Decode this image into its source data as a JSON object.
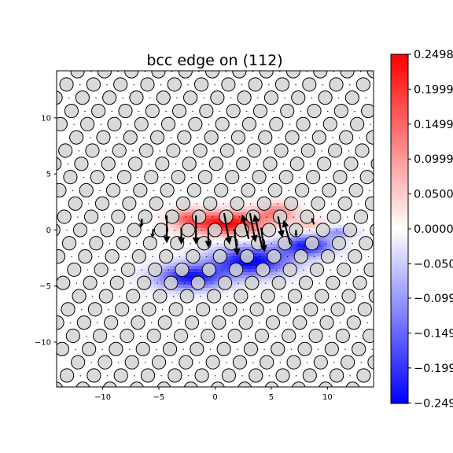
{
  "chart_data": {
    "type": "heatmap",
    "title": "bcc edge on (112)",
    "xlabel": "",
    "ylabel": "",
    "xlim": [
      -14.1,
      14.1
    ],
    "ylim": [
      -14.0,
      14.2
    ],
    "xticks": [
      -10,
      -5,
      0,
      5,
      10
    ],
    "yticks": [
      -10,
      -5,
      0,
      5,
      10
    ],
    "xtick_labels": [
      "−10",
      "−5",
      "0",
      "5",
      "10"
    ],
    "ytick_labels": [
      "−10",
      "−5",
      "0",
      "5",
      "10"
    ],
    "colormap": "bwr",
    "colors": {
      "min": "#0000ff",
      "mid": "#ffffff",
      "max": "#ff0000"
    },
    "colorbar": {
      "range": [
        -0.2498,
        0.2498
      ],
      "ticks": [
        0.2498,
        0.1999,
        0.1499,
        0.0999,
        0.05,
        0.0,
        -0.05,
        -0.099,
        -0.149,
        -0.199,
        -0.249
      ],
      "tick_labels": [
        "0.2498",
        "0.1999",
        "0.1499",
        "0.0999",
        "0.0500",
        "0.0000",
        "−0.050",
        "−0.099",
        "−0.149",
        "−0.199",
        "−0.249"
      ]
    },
    "lattice": {
      "description_marker": "open gray circles",
      "ax": 2.4,
      "ay": 1.18,
      "row_shift_step": 0.98,
      "x_range": [
        -14.5,
        14.5
      ],
      "y_range": [
        -14.5,
        14.5
      ]
    },
    "strain_blobs": [
      {
        "x": 1.0,
        "y": 0.6,
        "sx": 3.3,
        "sy": 1.0,
        "amp": 0.25
      },
      {
        "x": 5.5,
        "y": 1.6,
        "sx": 1.8,
        "sy": 0.8,
        "amp": 0.12
      },
      {
        "x": -2.5,
        "y": 1.1,
        "sx": 1.5,
        "sy": 0.8,
        "amp": 0.1
      },
      {
        "x": 8.5,
        "y": 0.4,
        "sx": 1.8,
        "sy": 0.6,
        "amp": 0.06
      },
      {
        "x": -2.2,
        "y": -4.2,
        "sx": 3.0,
        "sy": 1.1,
        "amp": -0.23
      },
      {
        "x": 3.2,
        "y": -2.8,
        "sx": 3.5,
        "sy": 1.3,
        "amp": -0.25
      },
      {
        "x": 8.2,
        "y": -1.4,
        "sx": 2.3,
        "sy": 0.9,
        "amp": -0.22
      },
      {
        "x": 11.0,
        "y": -0.2,
        "sx": 1.5,
        "sy": 0.5,
        "amp": -0.1
      }
    ],
    "displacement_arrows": [
      {
        "x": -4.3,
        "y": 1.3,
        "dx": 0.0,
        "dy": -2.5
      },
      {
        "x": -1.7,
        "y": 1.3,
        "dx": 0.0,
        "dy": -2.6
      },
      {
        "x": 0.8,
        "y": 1.5,
        "dx": 0.5,
        "dy": -2.8
      },
      {
        "x": 3.1,
        "y": 1.5,
        "dx": 0.5,
        "dy": -2.6
      },
      {
        "x": 5.6,
        "y": 1.2,
        "dx": 0.4,
        "dy": -1.9
      },
      {
        "x": -3.0,
        "y": 0.2,
        "dx": 0.0,
        "dy": -1.5
      },
      {
        "x": -0.6,
        "y": 0.2,
        "dx": 0.0,
        "dy": -1.8
      },
      {
        "x": 1.7,
        "y": 0.1,
        "dx": 0.3,
        "dy": -2.4
      },
      {
        "x": 4.1,
        "y": 0.2,
        "dx": 0.3,
        "dy": -2.2
      },
      {
        "x": 3.0,
        "y": -0.8,
        "dx": -0.6,
        "dy": 2.2
      },
      {
        "x": 4.2,
        "y": -1.6,
        "dx": -0.7,
        "dy": 3.0
      },
      {
        "x": 6.7,
        "y": -1.3,
        "dx": -0.6,
        "dy": 2.2
      },
      {
        "x": -6.5,
        "y": 1.0,
        "dx": -0.1,
        "dy": -0.8
      },
      {
        "x": -5.5,
        "y": 0.1,
        "dx": -0.1,
        "dy": -0.8
      },
      {
        "x": 7.2,
        "y": 0.0,
        "dx": 0.0,
        "dy": -0.6
      },
      {
        "x": 8.8,
        "y": 0.5,
        "dx": -0.2,
        "dy": 0.6
      }
    ]
  }
}
